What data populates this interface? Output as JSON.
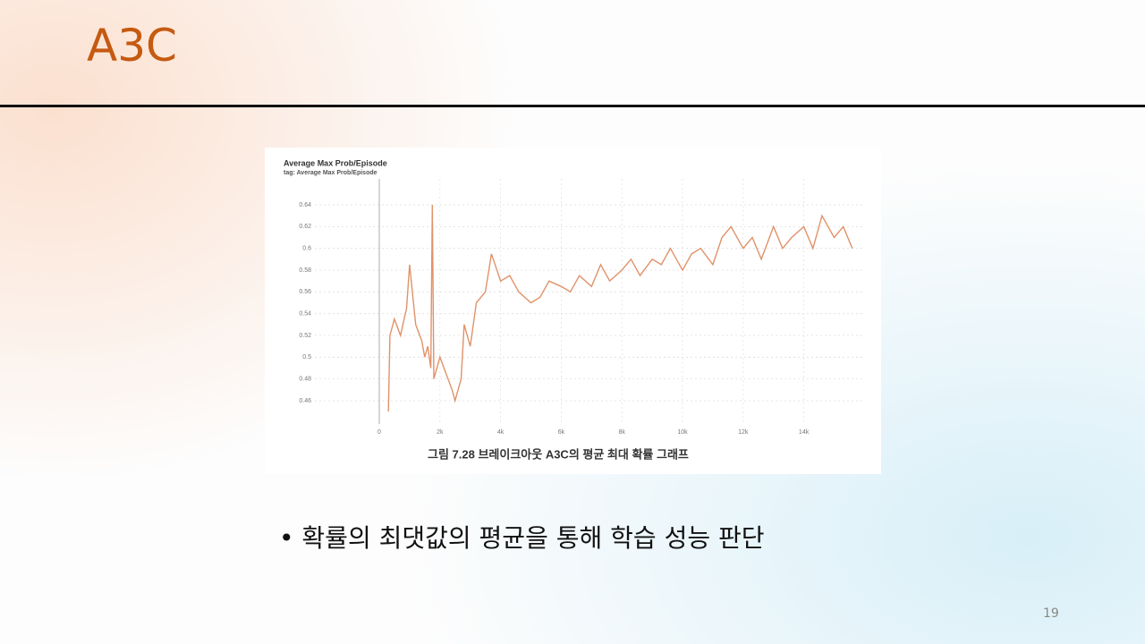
{
  "slide": {
    "title": "A3C",
    "bullet": "확률의 최댓값의 평균을 통해 학습 성능 판단",
    "page_number": "19",
    "caption": "그림 7.28 브레이크아웃 A3C의 평균 최대 확률 그래프"
  },
  "chart_data": {
    "type": "line",
    "title": "Average Max Prob/Episode",
    "subtitle": "tag: Average Max Prob/Episode",
    "color": "#e0926a",
    "grid": true,
    "x": [
      300,
      350,
      500,
      700,
      900,
      1000,
      1200,
      1400,
      1500,
      1600,
      1700,
      1750,
      1800,
      2000,
      2200,
      2400,
      2500,
      2700,
      2800,
      3000,
      3200,
      3500,
      3700,
      4000,
      4300,
      4600,
      5000,
      5300,
      5600,
      6000,
      6300,
      6600,
      7000,
      7300,
      7600,
      8000,
      8300,
      8600,
      9000,
      9300,
      9600,
      10000,
      10300,
      10600,
      11000,
      11300,
      11600,
      12000,
      12300,
      12600,
      13000,
      13300,
      13600,
      14000,
      14300,
      14600,
      15000,
      15300,
      15600
    ],
    "values": [
      0.45,
      0.52,
      0.535,
      0.52,
      0.545,
      0.585,
      0.53,
      0.515,
      0.5,
      0.51,
      0.49,
      0.64,
      0.48,
      0.5,
      0.485,
      0.47,
      0.46,
      0.48,
      0.53,
      0.51,
      0.55,
      0.56,
      0.595,
      0.57,
      0.575,
      0.56,
      0.55,
      0.555,
      0.57,
      0.565,
      0.56,
      0.575,
      0.565,
      0.585,
      0.57,
      0.58,
      0.59,
      0.575,
      0.59,
      0.585,
      0.6,
      0.58,
      0.595,
      0.6,
      0.585,
      0.61,
      0.62,
      0.6,
      0.61,
      0.59,
      0.62,
      0.6,
      0.61,
      0.62,
      0.6,
      0.63,
      0.61,
      0.62,
      0.6
    ],
    "xlim": [
      0,
      15800
    ],
    "ylim": [
      0.44,
      0.66
    ],
    "xticks": [
      0,
      {
        "value": 2000,
        "label": "2k"
      },
      {
        "value": 4000,
        "label": "4k"
      },
      {
        "value": 6000,
        "label": "6k"
      },
      {
        "value": 8000,
        "label": "8k"
      },
      {
        "value": 10000,
        "label": "10k"
      },
      {
        "value": 12000,
        "label": "12k"
      },
      {
        "value": 14000,
        "label": "14k"
      }
    ],
    "yticks": [
      0.46,
      0.48,
      0.5,
      0.52,
      0.54,
      0.56,
      0.58,
      0.6,
      0.62,
      0.64
    ]
  }
}
